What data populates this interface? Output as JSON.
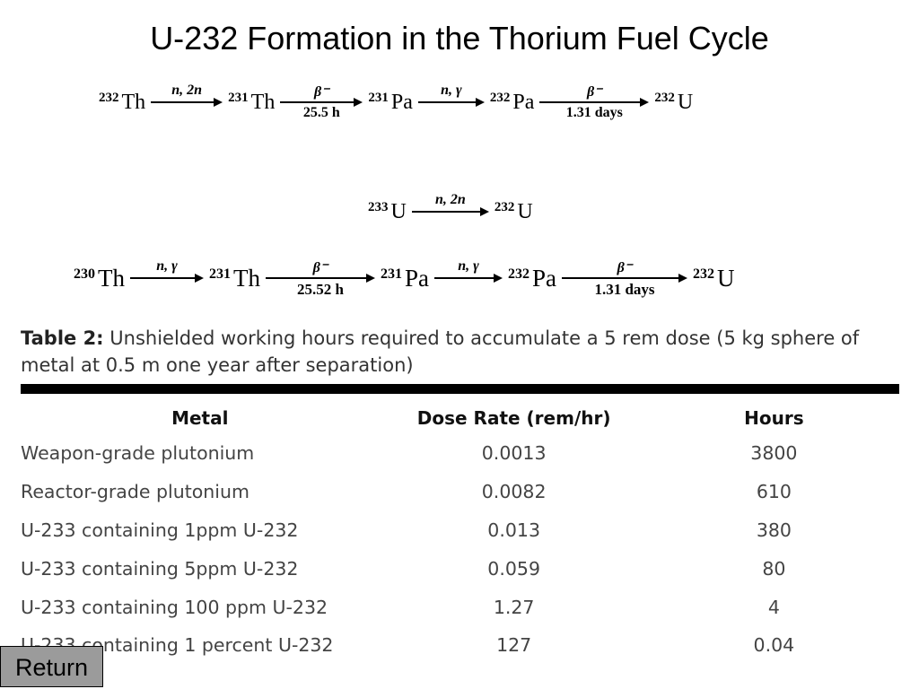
{
  "title": "U-232 Formation in the Thorium Fuel Cycle",
  "chains": [
    {
      "nuclides": [
        {
          "mass": "232",
          "symbol": "Th"
        },
        {
          "mass": "231",
          "symbol": "Th"
        },
        {
          "mass": "231",
          "symbol": "Pa"
        },
        {
          "mass": "232",
          "symbol": "Pa"
        },
        {
          "mass": "232",
          "symbol": "U"
        }
      ],
      "arrows": [
        {
          "above": "n, 2n",
          "below": ""
        },
        {
          "above": "β⁻",
          "below": "25.5 h"
        },
        {
          "above": "n, γ",
          "below": ""
        },
        {
          "above": "β⁻",
          "below": "1.31 days"
        }
      ]
    },
    {
      "nuclides": [
        {
          "mass": "233",
          "symbol": "U"
        },
        {
          "mass": "232",
          "symbol": "U"
        }
      ],
      "arrows": [
        {
          "above": "n, 2n",
          "below": ""
        }
      ]
    },
    {
      "nuclides": [
        {
          "mass": "230",
          "symbol": "Th"
        },
        {
          "mass": "231",
          "symbol": "Th"
        },
        {
          "mass": "231",
          "symbol": "Pa"
        },
        {
          "mass": "232",
          "symbol": "Pa"
        },
        {
          "mass": "232",
          "symbol": "U"
        }
      ],
      "arrows": [
        {
          "above": "n, γ",
          "below": ""
        },
        {
          "above": "β⁻",
          "below": "25.52 h"
        },
        {
          "above": "n, γ",
          "below": ""
        },
        {
          "above": "β⁻",
          "below": "1.31 days"
        }
      ]
    }
  ],
  "table": {
    "caption_label": "Table 2:",
    "caption_text": "Unshielded working hours required to accumulate a 5 rem dose (5 kg sphere of metal at 0.5 m one year after separation)",
    "headers": [
      "Metal",
      "Dose Rate (rem/hr)",
      "Hours"
    ],
    "rows": [
      [
        "Weapon-grade plutonium",
        "0.0013",
        "3800"
      ],
      [
        "Reactor-grade plutonium",
        "0.0082",
        "610"
      ],
      [
        "U-233 containing 1ppm U-232",
        "0.013",
        "380"
      ],
      [
        "U-233 containing 5ppm U-232",
        "0.059",
        "80"
      ],
      [
        "U-233 containing 100 ppm U-232",
        "1.27",
        "4"
      ],
      [
        "U-233 containing 1 percent U-232",
        "127",
        "0.04"
      ]
    ]
  },
  "return_button": "Return"
}
